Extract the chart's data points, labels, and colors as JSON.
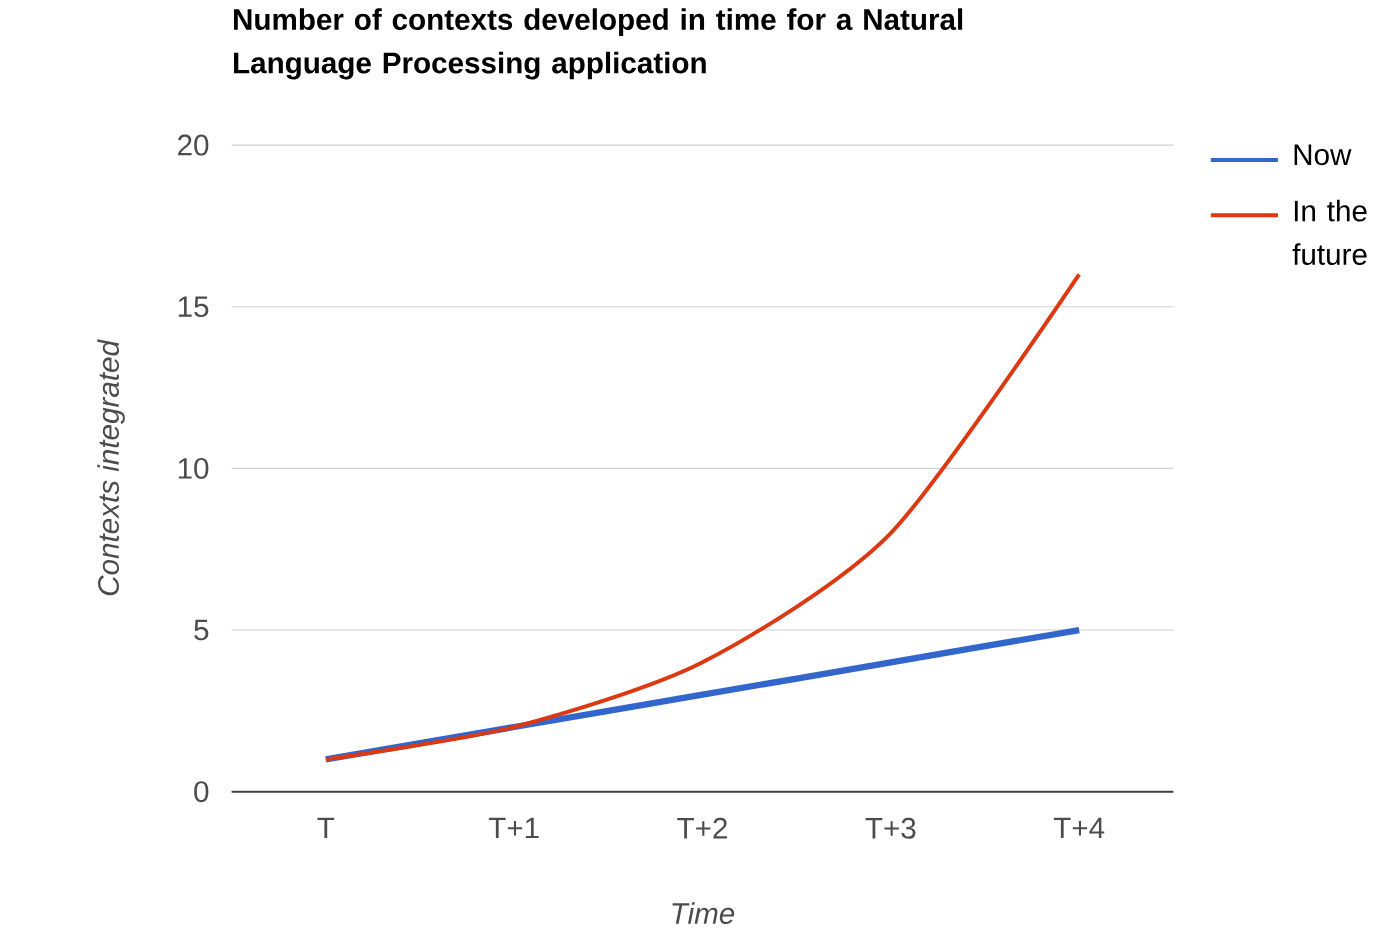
{
  "chart_data": {
    "type": "line",
    "title": "Number of contexts developed in time for a Natural Language Processing application",
    "xlabel": "Time",
    "ylabel": "Contexts integrated",
    "categories": [
      "T",
      "T+1",
      "T+2",
      "T+3",
      "T+4"
    ],
    "series": [
      {
        "name": "Now",
        "color": "#3366cc",
        "values": [
          1,
          2,
          3,
          4,
          5
        ]
      },
      {
        "name": "In the future",
        "color": "#dc3912",
        "values": [
          1,
          2,
          4,
          8,
          16
        ]
      }
    ],
    "ylim": [
      0,
      20
    ],
    "yticks": [
      0,
      5,
      10,
      15,
      20
    ],
    "grid": "y",
    "legend": "right",
    "marker": "none",
    "line_style": "solid"
  }
}
